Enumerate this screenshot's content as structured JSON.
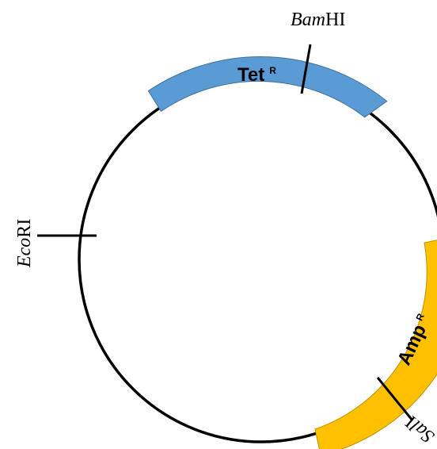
{
  "diagram": {
    "type": "plasmid-map",
    "colors": {
      "backbone": "#000000",
      "tet_gene": "#5b9bd5",
      "amp_gene": "#ffc000",
      "background": "#ffffff"
    },
    "genes": [
      {
        "id": "tet",
        "name": "Tet",
        "superscript": "R"
      },
      {
        "id": "amp",
        "name": "Amp",
        "superscript": "R"
      }
    ],
    "sites": [
      {
        "id": "bamhi",
        "italic": "Bam",
        "roman": "HI"
      },
      {
        "id": "ecori",
        "italic": "Eco",
        "roman": "RI"
      },
      {
        "id": "sali",
        "italic": "Sal",
        "roman": "I"
      }
    ]
  }
}
